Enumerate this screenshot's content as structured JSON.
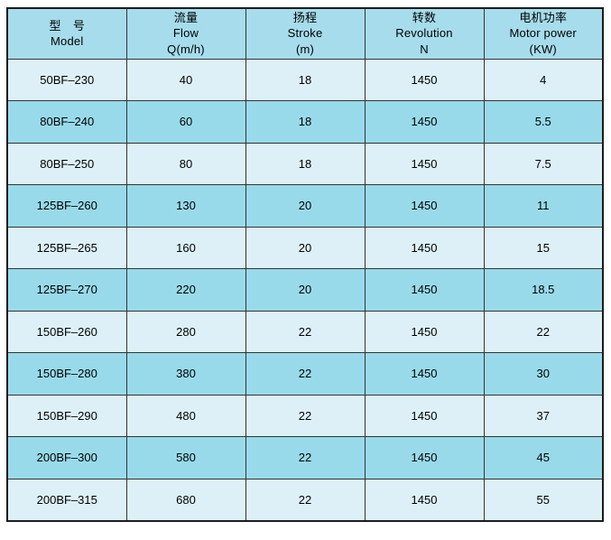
{
  "colors": {
    "header_bg": "#a6dceb",
    "row_light": "#ddf0f8",
    "row_dark": "#99daea",
    "grid_border": "#333333",
    "outer_border": "#1c1c1c",
    "text": "#000000",
    "page_bg": "#ffffff"
  },
  "table": {
    "column_keys": [
      "model",
      "flow",
      "stroke",
      "revolution",
      "motor-power"
    ],
    "columns": [
      {
        "zh": "型　号",
        "en": "Model",
        "unit": ""
      },
      {
        "zh": "流量",
        "en": "Flow",
        "unit": "Q(m/h)"
      },
      {
        "zh": "扬程",
        "en": "Stroke",
        "unit": "(m)"
      },
      {
        "zh": "转数",
        "en": "Revolution",
        "unit": "N"
      },
      {
        "zh": "电机功率",
        "en": "Motor power",
        "unit": "(KW)"
      }
    ],
    "rows": [
      [
        "50BF–230",
        "40",
        "18",
        "1450",
        "4"
      ],
      [
        "80BF–240",
        "60",
        "18",
        "1450",
        "5.5"
      ],
      [
        "80BF–250",
        "80",
        "18",
        "1450",
        "7.5"
      ],
      [
        "125BF–260",
        "130",
        "20",
        "1450",
        "11"
      ],
      [
        "125BF–265",
        "160",
        "20",
        "1450",
        "15"
      ],
      [
        "125BF–270",
        "220",
        "20",
        "1450",
        "18.5"
      ],
      [
        "150BF–260",
        "280",
        "22",
        "1450",
        "22"
      ],
      [
        "150BF–280",
        "380",
        "22",
        "1450",
        "30"
      ],
      [
        "150BF–290",
        "480",
        "22",
        "1450",
        "37"
      ],
      [
        "200BF–300",
        "580",
        "22",
        "1450",
        "45"
      ],
      [
        "200BF–315",
        "680",
        "22",
        "1450",
        "55"
      ]
    ]
  }
}
